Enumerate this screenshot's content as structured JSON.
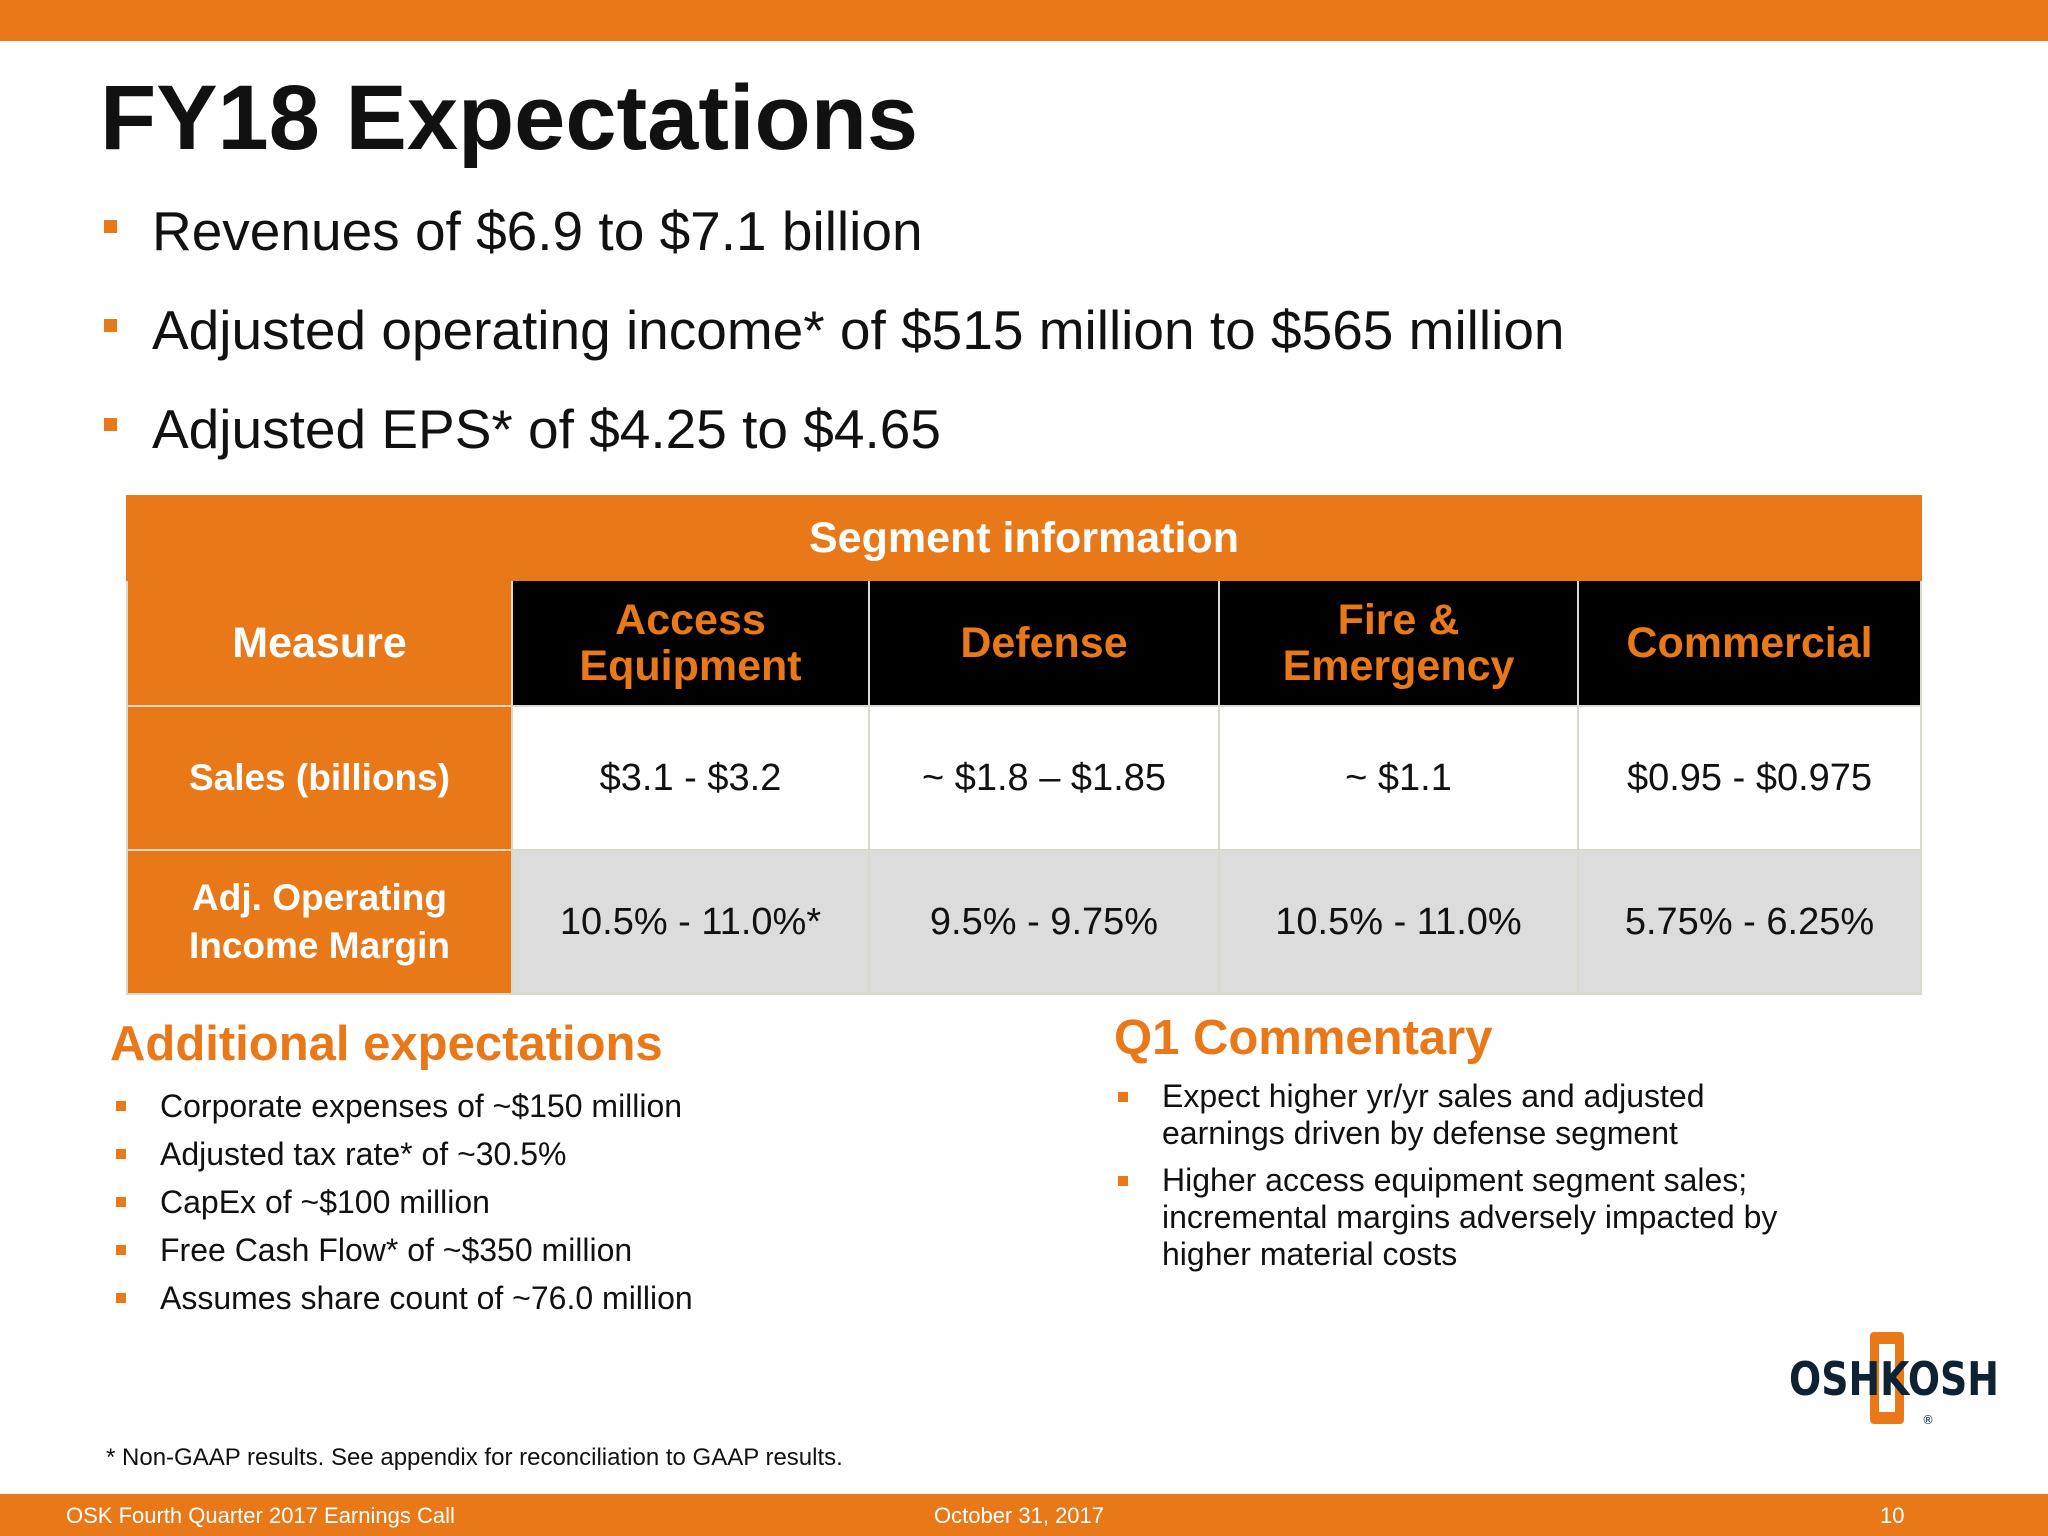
{
  "slide": {
    "title": "FY18 Expectations",
    "bullets": [
      "Revenues of $6.9 to $7.1 billion",
      "Adjusted operating income* of $515 million to $565 million",
      "Adjusted EPS* of $4.25 to $4.65"
    ]
  },
  "segment_table": {
    "title": "Segment information",
    "headers": [
      "Measure",
      "Access Equipment",
      "Defense",
      "Fire & Emergency",
      "Commercial"
    ],
    "rows": [
      {
        "label": "Sales (billions)",
        "values": [
          "$3.1 - $3.2",
          "~ $1.8 – $1.85",
          "~ $1.1",
          "$0.95 - $0.975"
        ]
      },
      {
        "label": "Adj. Operating Income Margin",
        "values": [
          "10.5% - 11.0%*",
          "9.5% - 9.75%",
          "10.5% - 11.0%",
          "5.75% - 6.25%"
        ]
      }
    ]
  },
  "additional": {
    "title": "Additional expectations",
    "items": [
      "Corporate expenses of ~$150 million",
      "Adjusted tax rate* of ~30.5%",
      "CapEx of ~$100 million",
      "Free Cash Flow* of ~$350 million",
      "Assumes share count of ~76.0 million"
    ]
  },
  "q1": {
    "title": "Q1 Commentary",
    "items": [
      "Expect higher yr/yr sales and adjusted earnings driven by defense segment",
      "Higher access equipment segment sales; incremental margins adversely impacted by higher material costs"
    ]
  },
  "footnote": "*  Non-GAAP results. See appendix for reconciliation to GAAP results.",
  "footer": {
    "left": "OSK Fourth Quarter 2017 Earnings Call",
    "center": "October 31, 2017",
    "page": "10"
  },
  "logo": {
    "text": "OSHKOSH",
    "registered": "®"
  },
  "colors": {
    "accent": "#e87818",
    "header_dark": "#000000",
    "row_gray": "#dcdcdc"
  }
}
